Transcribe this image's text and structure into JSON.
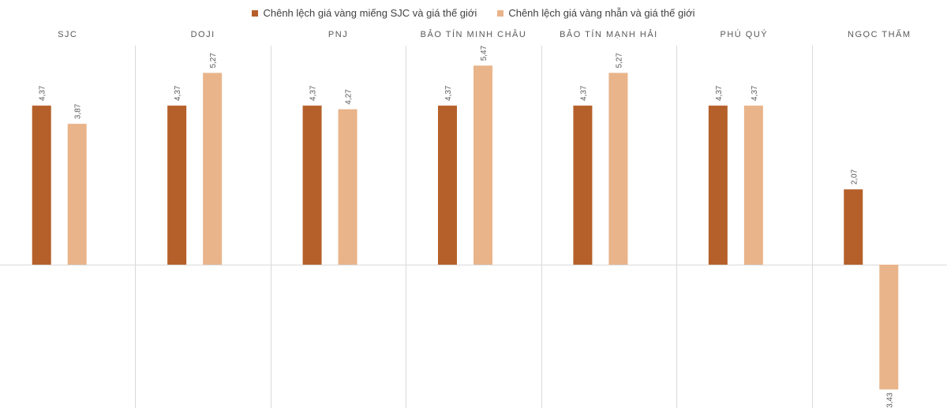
{
  "chart_data": {
    "type": "bar",
    "title": "",
    "categories": [
      "SJC",
      "DOJI",
      "PNJ",
      "BẢO TÍN MINH CHÂU",
      "BẢO TÍN MẠNH HẢI",
      "PHÚ QUÝ",
      "NGỌC THẨM"
    ],
    "series": [
      {
        "name": "Chênh lệch giá vàng miếng SJC và giá thế giới",
        "color": "#b5602a",
        "values": [
          4.37,
          4.37,
          4.37,
          4.37,
          4.37,
          4.37,
          2.07
        ],
        "labels": [
          "4,37",
          "4,37",
          "4,37",
          "4,37",
          "4,37",
          "4,37",
          "2,07"
        ]
      },
      {
        "name": "Chênh lệch giá vàng nhẫn và giá thế giới",
        "color": "#e9b48a",
        "values": [
          3.87,
          5.27,
          4.27,
          5.47,
          5.27,
          4.37,
          -3.43
        ],
        "labels": [
          "3,87",
          "5,27",
          "4,27",
          "5,47",
          "5,27",
          "4,37",
          "-3,43"
        ]
      }
    ],
    "ylim": [
      -3.9,
      6.0
    ],
    "legend_position": "top-center",
    "grid": false
  }
}
